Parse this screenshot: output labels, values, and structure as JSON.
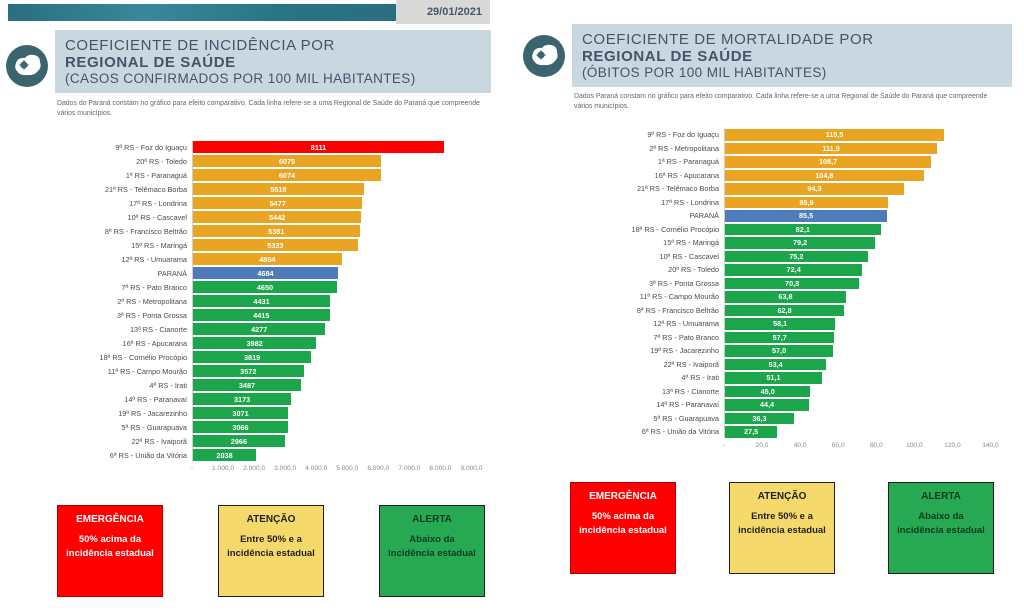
{
  "date": "29/01/2021",
  "colors": {
    "red": "#fe0000",
    "yellow": "#e9a521",
    "green": "#1ca64c",
    "blue": "#4e7cbb",
    "legend_red_bg": "#fe0000",
    "legend_yellow_bg": "#f6d96b",
    "legend_green_bg": "#27a953",
    "top_bar": "#2f7f91",
    "header_band_bg": "#c8d7e0",
    "date_box_bg": "#d8d8d8"
  },
  "legend": {
    "emergency": {
      "title": "EMERGÊNCIA",
      "text": "50% acima da incidência estadual"
    },
    "attention": {
      "title": "ATENÇÃO",
      "text": "Entre 50% e a incidência estadual"
    },
    "alert": {
      "title": "ALERTA",
      "text": "Abaixo da incidência estadual"
    }
  },
  "chart_data": [
    {
      "type": "bar",
      "orientation": "horizontal",
      "title": "COEFICIENTE DE INCIDÊNCIA POR REGIONAL DE SAÚDE (CASOS CONFIRMADOS POR 100 MIL HABITANTES)",
      "title_line1": "COEFICIENTE DE INCIDÊNCIA POR",
      "title_line2": "REGIONAL DE SAÚDE",
      "title_line3": "(CASOS CONFIRMADOS POR 100 MIL HABITANTES)",
      "note": "Dados do Paraná constam no gráfico para efeito comparativo. Cada linha refere-se a uma Regional de Saúde do Paraná que compreende vários municípios.",
      "xlabel": "",
      "ylabel": "",
      "axis_max": 9500,
      "xlim": [
        0,
        9500
      ],
      "ticks": [
        {
          "label": "-",
          "value": 0
        },
        {
          "label": "1.000,0",
          "value": 1000
        },
        {
          "label": "2.000,0",
          "value": 2000
        },
        {
          "label": "3.000,0",
          "value": 3000
        },
        {
          "label": "4.000,0",
          "value": 4000
        },
        {
          "label": "5.000,0",
          "value": 5000
        },
        {
          "label": "6.000,0",
          "value": 6000
        },
        {
          "label": "7.000,0",
          "value": 7000
        },
        {
          "label": "8.000,0",
          "value": 8000
        },
        {
          "label": "9.000,0",
          "value": 9000
        }
      ],
      "rows": [
        {
          "label": "9ª RS - Foz do Iguaçu",
          "value": 8111,
          "display": "8111",
          "color": "red"
        },
        {
          "label": "20ª RS - Toledo",
          "value": 6075,
          "display": "6075",
          "color": "yellow"
        },
        {
          "label": "1ª RS - Paranaguá",
          "value": 6074,
          "display": "6074",
          "color": "yellow"
        },
        {
          "label": "21ª RS - Telêmaco Borba",
          "value": 5518,
          "display": "5518",
          "color": "yellow"
        },
        {
          "label": "17ª RS - Londrina",
          "value": 5477,
          "display": "5477",
          "color": "yellow"
        },
        {
          "label": "10ª RS - Cascavel",
          "value": 5442,
          "display": "5442",
          "color": "yellow"
        },
        {
          "label": "8ª RS - Francisco Beltrão",
          "value": 5381,
          "display": "5381",
          "color": "yellow"
        },
        {
          "label": "15ª RS - Maringá",
          "value": 5323,
          "display": "5323",
          "color": "yellow"
        },
        {
          "label": "12ª RS - Umuarama",
          "value": 4804,
          "display": "4804",
          "color": "yellow"
        },
        {
          "label": "PARANÁ",
          "value": 4684,
          "display": "4684",
          "color": "blue"
        },
        {
          "label": "7ª RS - Pato Branco",
          "value": 4650,
          "display": "4650",
          "color": "green"
        },
        {
          "label": "2ª RS - Metropolitana",
          "value": 4431,
          "display": "4431",
          "color": "green"
        },
        {
          "label": "3ª RS - Ponta Grossa",
          "value": 4415,
          "display": "4415",
          "color": "green"
        },
        {
          "label": "13ª RS - Cianorte",
          "value": 4277,
          "display": "4277",
          "color": "green"
        },
        {
          "label": "16ª RS - Apucarana",
          "value": 3982,
          "display": "3982",
          "color": "green"
        },
        {
          "label": "18ª RS - Cornélio Procópio",
          "value": 3819,
          "display": "3819",
          "color": "green"
        },
        {
          "label": "11ª RS - Campo Mourão",
          "value": 3572,
          "display": "3572",
          "color": "green"
        },
        {
          "label": "4ª RS - Irati",
          "value": 3487,
          "display": "3487",
          "color": "green"
        },
        {
          "label": "14ª RS - Paranavaí",
          "value": 3173,
          "display": "3173",
          "color": "green"
        },
        {
          "label": "19ª RS - Jacarezinho",
          "value": 3071,
          "display": "3071",
          "color": "green"
        },
        {
          "label": "5ª RS - Guarapuava",
          "value": 3066,
          "display": "3066",
          "color": "green"
        },
        {
          "label": "22ª RS - Ivaiporã",
          "value": 2966,
          "display": "2966",
          "color": "green"
        },
        {
          "label": "6ª RS - União da Vitória",
          "value": 2038,
          "display": "2038",
          "color": "green"
        }
      ]
    },
    {
      "type": "bar",
      "orientation": "horizontal",
      "title": "COEFICIENTE DE MORTALIDADE POR REGIONAL DE SAÚDE (ÓBITOS POR 100 MIL HABITANTES)",
      "title_line1": "COEFICIENTE DE MORTALIDADE POR",
      "title_line2": "REGIONAL DE SAÚDE",
      "title_line3": "(ÓBITOS POR 100 MIL HABITANTES)",
      "note": "Dados Paraná constam no gráfico para efeito comparativo. Cada linha refere-se a uma Regional de Saúde do Paraná que compreende vários municípios.",
      "xlabel": "",
      "ylabel": "",
      "axis_max": 145,
      "xlim": [
        0,
        145
      ],
      "ticks": [
        {
          "label": "-",
          "value": 0
        },
        {
          "label": "20,0",
          "value": 20
        },
        {
          "label": "40,0",
          "value": 40
        },
        {
          "label": "60,0",
          "value": 60
        },
        {
          "label": "80,0",
          "value": 80
        },
        {
          "label": "100,0",
          "value": 100
        },
        {
          "label": "120,0",
          "value": 120
        },
        {
          "label": "140,0",
          "value": 140
        }
      ],
      "rows": [
        {
          "label": "9ª RS - Foz do Iguaçu",
          "value": 115.5,
          "display": "115,5",
          "color": "yellow"
        },
        {
          "label": "2ª RS - Metropolitana",
          "value": 111.9,
          "display": "111,9",
          "color": "yellow"
        },
        {
          "label": "1ª RS - Paranaguá",
          "value": 108.7,
          "display": "108,7",
          "color": "yellow"
        },
        {
          "label": "16ª RS - Apucarana",
          "value": 104.8,
          "display": "104,8",
          "color": "yellow"
        },
        {
          "label": "21ª RS - Telêmaco Borba",
          "value": 94.3,
          "display": "94,3",
          "color": "yellow"
        },
        {
          "label": "17ª RS - Londrina",
          "value": 85.9,
          "display": "85,9",
          "color": "yellow"
        },
        {
          "label": "PARANÁ",
          "value": 85.5,
          "display": "85,5",
          "color": "blue"
        },
        {
          "label": "18ª RS - Cornélio Procópio",
          "value": 82.1,
          "display": "82,1",
          "color": "green"
        },
        {
          "label": "15ª RS - Maringá",
          "value": 79.2,
          "display": "79,2",
          "color": "green"
        },
        {
          "label": "10ª RS - Cascavel",
          "value": 75.2,
          "display": "75,2",
          "color": "green"
        },
        {
          "label": "20ª RS - Toledo",
          "value": 72.4,
          "display": "72,4",
          "color": "green"
        },
        {
          "label": "3ª RS - Ponta Grossa",
          "value": 70.8,
          "display": "70,8",
          "color": "green"
        },
        {
          "label": "11ª RS - Campo Mourão",
          "value": 63.8,
          "display": "63,8",
          "color": "green"
        },
        {
          "label": "8ª RS - Francisco Beltrão",
          "value": 62.8,
          "display": "62,8",
          "color": "green"
        },
        {
          "label": "12ª RS - Umuarama",
          "value": 58.1,
          "display": "58,1",
          "color": "green"
        },
        {
          "label": "7ª RS - Pato Branco",
          "value": 57.7,
          "display": "57,7",
          "color": "green"
        },
        {
          "label": "19ª RS - Jacarezinho",
          "value": 57.0,
          "display": "57,0",
          "color": "green"
        },
        {
          "label": "22ª RS - Ivaiporã",
          "value": 53.4,
          "display": "53,4",
          "color": "green"
        },
        {
          "label": "4ª RS - Irati",
          "value": 51.1,
          "display": "51,1",
          "color": "green"
        },
        {
          "label": "13ª RS - Cianorte",
          "value": 45.0,
          "display": "45,0",
          "color": "green"
        },
        {
          "label": "14ª RS - Paranavaí",
          "value": 44.4,
          "display": "44,4",
          "color": "green"
        },
        {
          "label": "5ª RS - Guarapuava",
          "value": 36.3,
          "display": "36,3",
          "color": "green"
        },
        {
          "label": "6ª RS - União da Vitória",
          "value": 27.5,
          "display": "27,5",
          "color": "green"
        }
      ]
    }
  ]
}
